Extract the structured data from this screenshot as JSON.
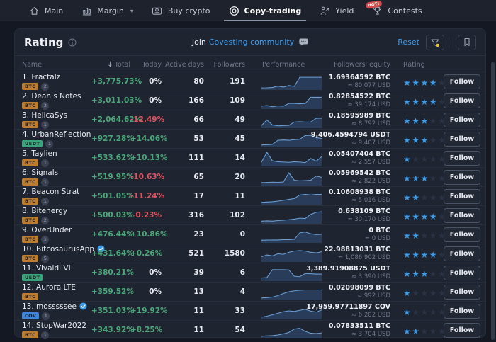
{
  "nav": {
    "items": [
      {
        "label": "Main",
        "icon": "home-icon",
        "active": false,
        "caret": false,
        "badge": null
      },
      {
        "label": "Margin",
        "icon": "chart-bars-icon",
        "active": false,
        "caret": true,
        "badge": null
      },
      {
        "label": "Buy crypto",
        "icon": "wallet-icon",
        "active": false,
        "caret": false,
        "badge": null
      },
      {
        "label": "Copy-trading",
        "icon": "copy-trading-icon",
        "active": true,
        "caret": false,
        "badge": null
      },
      {
        "label": "Yield",
        "icon": "yield-icon",
        "active": false,
        "caret": false,
        "badge": null
      },
      {
        "label": "Contests",
        "icon": "trophy-icon",
        "active": false,
        "caret": false,
        "badge": "HOT!"
      }
    ]
  },
  "panel": {
    "title": "Rating",
    "join_prefix": "Join",
    "join_link": "Covesting community",
    "reset_label": "Reset"
  },
  "table": {
    "columns": [
      "Name",
      "Total",
      "Today",
      "Active days",
      "Followers",
      "Performance",
      "Followers' equity",
      "Rating"
    ],
    "sorted_column": "Total",
    "sort_direction": "desc",
    "follow_label": "Follow",
    "rows": [
      {
        "rank": "1.",
        "name": "Fractalz",
        "verified": false,
        "currency": "BTC",
        "count": "2",
        "total": "+3,775.73%",
        "today": "0%",
        "today_dir": "flat",
        "active_days": "80",
        "followers": "191",
        "equity": "1.69364592 BTC",
        "equity_usd": "≈ 80,077 USD",
        "stars": 4,
        "spark": [
          6,
          7,
          9,
          18,
          12,
          22,
          16,
          78,
          78,
          78,
          78,
          78
        ]
      },
      {
        "rank": "2.",
        "name": "Dean s Notes",
        "verified": false,
        "currency": "BTC",
        "count": "2",
        "total": "+3,011.03%",
        "today": "0%",
        "today_dir": "flat",
        "active_days": "166",
        "followers": "109",
        "equity": "0.82854522 BTC",
        "equity_usd": "≈ 39,174 USD",
        "stars": 4,
        "spark": [
          12,
          16,
          8,
          14,
          12,
          30,
          30,
          28,
          30,
          72,
          72,
          72
        ]
      },
      {
        "rank": "3.",
        "name": "HelicaSys",
        "verified": false,
        "currency": "BTC",
        "count": "1",
        "total": "+2,064.62%",
        "today": "-12.49%",
        "today_dir": "down",
        "active_days": "66",
        "followers": "49",
        "equity": "0.18595989 BTC",
        "equity_usd": "≈ 8,792 USD",
        "stars": 3,
        "spark": [
          10,
          48,
          14,
          8,
          10,
          11,
          34,
          36,
          34,
          34,
          60,
          60
        ]
      },
      {
        "rank": "4.",
        "name": "UrbanReflection",
        "verified": false,
        "currency": "USDT",
        "count": "1",
        "total": "+927.28%",
        "today": "+14.06%",
        "today_dir": "up",
        "active_days": "53",
        "followers": "45",
        "equity": "9,406.4594794 USDT",
        "equity_usd": "≈ 9,407 USD",
        "stars": 3,
        "spark": [
          8,
          10,
          12,
          40,
          42,
          40,
          44,
          46,
          72,
          74,
          58,
          52
        ]
      },
      {
        "rank": "5.",
        "name": "Taylien",
        "verified": false,
        "currency": "BTC",
        "count": "1",
        "total": "+533.62%",
        "today": "+10.13%",
        "today_dir": "up",
        "active_days": "111",
        "followers": "14",
        "equity": "0.05407404 BTC",
        "equity_usd": "≈ 2,557 USD",
        "stars": 1,
        "spark": [
          22,
          88,
          30,
          24,
          22,
          20,
          24,
          22,
          18,
          46,
          28,
          58
        ]
      },
      {
        "rank": "6.",
        "name": "Signals",
        "verified": false,
        "currency": "BTC",
        "count": "1",
        "total": "+519.95%",
        "today": "-10.63%",
        "today_dir": "down",
        "active_days": "65",
        "followers": "20",
        "equity": "0.05969542 BTC",
        "equity_usd": "≈ 2,822 USD",
        "stars": 3,
        "spark": [
          12,
          13,
          15,
          14,
          16,
          78,
          28,
          24,
          26,
          28,
          56,
          48
        ]
      },
      {
        "rank": "7.",
        "name": "Beacon Strat",
        "verified": false,
        "currency": "BTC",
        "count": "1",
        "total": "+501.05%",
        "today": "-11.24%",
        "today_dir": "down",
        "active_days": "17",
        "followers": "11",
        "equity": "0.10608938 BTC",
        "equity_usd": "≈ 5,016 USD",
        "stars": 2,
        "spark": [
          8,
          10,
          12,
          16,
          22,
          28,
          34,
          58,
          62,
          58,
          62,
          62
        ]
      },
      {
        "rank": "8.",
        "name": "Bitenergy",
        "verified": false,
        "currency": "BTC",
        "count": "2",
        "total": "+500.03%",
        "today": "-0.23%",
        "today_dir": "down",
        "active_days": "316",
        "followers": "102",
        "equity": "0.638109 BTC",
        "equity_usd": "≈ 30,170 USD",
        "stars": 4,
        "spark": [
          10,
          12,
          10,
          14,
          16,
          20,
          24,
          30,
          28,
          56,
          70,
          74
        ]
      },
      {
        "rank": "9.",
        "name": "OverUnder",
        "verified": false,
        "currency": "BTC",
        "count": "1",
        "total": "+476.44%",
        "today": "+10.86%",
        "today_dir": "up",
        "active_days": "23",
        "followers": "0",
        "equity": "0 BTC",
        "equity_usd": "≈ 0 USD",
        "stars": 2,
        "spark": [
          10,
          11,
          12,
          12,
          14,
          14,
          16,
          60,
          66,
          54,
          48,
          50
        ]
      },
      {
        "rank": "10.",
        "name": "BitcosaurusApp",
        "verified": true,
        "currency": "BTC",
        "count": "5",
        "total": "+431.64%",
        "today": "+0.26%",
        "today_dir": "up",
        "active_days": "521",
        "followers": "1580",
        "equity": "22.98813031 BTC",
        "equity_usd": "≈ 1,086,902 USD",
        "stars": 4,
        "spark": [
          28,
          40,
          34,
          48,
          44,
          58,
          66,
          70,
          66,
          58,
          54,
          62
        ]
      },
      {
        "rank": "11.",
        "name": "Vivaldi VI",
        "verified": false,
        "currency": "USDT",
        "count": null,
        "total": "+380.21%",
        "today": "0%",
        "today_dir": "flat",
        "active_days": "39",
        "followers": "6",
        "equity": "3,389.91908875 USDT",
        "equity_usd": "≈ 3,390 USD",
        "stars": 3,
        "spark": [
          14,
          16,
          70,
          70,
          70,
          68,
          26,
          22,
          44,
          42,
          40,
          40
        ]
      },
      {
        "rank": "12.",
        "name": "Aurora LTE",
        "verified": false,
        "currency": "BTC",
        "count": null,
        "total": "+359.52%",
        "today": "0%",
        "today_dir": "flat",
        "active_days": "13",
        "followers": "4",
        "equity": "0.02098099 BTC",
        "equity_usd": "≈ 992 USD",
        "stars": 1,
        "spark": [
          8,
          10,
          14,
          24,
          38,
          50,
          56,
          60,
          62,
          62,
          62,
          62
        ]
      },
      {
        "rank": "13.",
        "name": "mosssssee",
        "verified": true,
        "currency": "COV",
        "count": "1",
        "total": "+351.03%",
        "today": "+19.92%",
        "today_dir": "up",
        "active_days": "11",
        "followers": "33",
        "equity": "17,959.97711897 COV",
        "equity_usd": "≈ 6,202 USD",
        "stars": 1,
        "spark": [
          8,
          14,
          24,
          34,
          44,
          50,
          46,
          54,
          60,
          48,
          42,
          56
        ]
      },
      {
        "rank": "14.",
        "name": "StopWar2022",
        "verified": false,
        "currency": "BTC",
        "count": "1",
        "total": "+343.92%",
        "today": "+8.25%",
        "today_dir": "up",
        "active_days": "11",
        "followers": "54",
        "equity": "0.07833511 BTC",
        "equity_usd": "≈ 3,704 USD",
        "stars": 2,
        "spark": [
          8,
          10,
          12,
          16,
          24,
          34,
          56,
          62,
          40,
          28,
          26,
          30
        ]
      }
    ]
  },
  "colors": {
    "accent_blue": "#3f9ceb",
    "positive_green": "#4aa878",
    "negative_red": "#e0535f",
    "star_blue": "#3e9ce9",
    "btc_badge": "#bd7d2e",
    "usdt_badge": "#3aa47c",
    "cov_badge": "#3e86d8",
    "filter_dot_yellow": "#e9c436"
  }
}
